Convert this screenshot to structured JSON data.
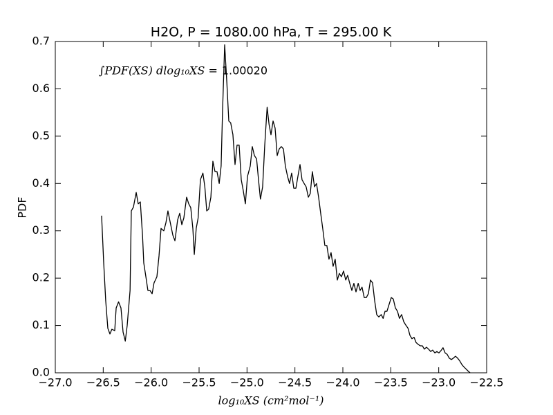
{
  "chart_data": {
    "type": "line",
    "title": "H2O, P = 1080.00 hPa, T = 295.00 K",
    "xlabel": "log₁₀XS (cm²mol⁻¹)",
    "ylabel": "PDF",
    "annotation": {
      "label": "∫PDF(XS) dlog₁₀XS =",
      "value": "1.00020"
    },
    "color": "#000000",
    "grid": false,
    "xlim": [
      -27.0,
      -22.5
    ],
    "ylim": [
      0,
      0.7
    ],
    "xticks": [
      {
        "value": -27.0,
        "label": "−27.0"
      },
      {
        "value": -26.5,
        "label": "−26.5"
      },
      {
        "value": -26.0,
        "label": "−26.0"
      },
      {
        "value": -25.5,
        "label": "−25.5"
      },
      {
        "value": -25.0,
        "label": "−25.0"
      },
      {
        "value": -24.5,
        "label": "−24.5"
      },
      {
        "value": -24.0,
        "label": "−24.0"
      },
      {
        "value": -23.5,
        "label": "−23.5"
      },
      {
        "value": -23.0,
        "label": "−23.0"
      },
      {
        "value": -22.5,
        "label": "−22.5"
      }
    ],
    "yticks": [
      {
        "value": 0,
        "label": "0.0"
      },
      0.1,
      0.2,
      0.3,
      0.4,
      0.5,
      0.6,
      0.7
    ],
    "x": [
      -26.517,
      -26.495,
      -26.474,
      -26.452,
      -26.43,
      -26.41,
      -26.38,
      -26.365,
      -26.34,
      -26.315,
      -26.293,
      -26.27,
      -26.25,
      -26.22,
      -26.207,
      -26.185,
      -26.156,
      -26.135,
      -26.113,
      -26.09,
      -26.077,
      -26.055,
      -26.034,
      -26.012,
      -25.99,
      -25.97,
      -25.94,
      -25.918,
      -25.897,
      -25.868,
      -25.846,
      -25.825,
      -25.796,
      -25.774,
      -25.752,
      -25.724,
      -25.702,
      -25.68,
      -25.659,
      -25.63,
      -25.608,
      -25.587,
      -25.565,
      -25.55,
      -25.53,
      -25.51,
      -25.486,
      -25.46,
      -25.44,
      -25.42,
      -25.4,
      -25.377,
      -25.356,
      -25.334,
      -25.313,
      -25.29,
      -25.27,
      -25.255,
      -25.233,
      -25.21,
      -25.19,
      -25.17,
      -25.147,
      -25.125,
      -25.104,
      -25.082,
      -25.06,
      -25.04,
      -25.017,
      -24.995,
      -24.966,
      -24.945,
      -24.923,
      -24.9,
      -24.88,
      -24.86,
      -24.837,
      -24.815,
      -24.79,
      -24.77,
      -24.75,
      -24.728,
      -24.707,
      -24.685,
      -24.664,
      -24.642,
      -24.62,
      -24.6,
      -24.577,
      -24.556,
      -24.534,
      -24.512,
      -24.49,
      -24.469,
      -24.447,
      -24.426,
      -24.404,
      -24.383,
      -24.36,
      -24.34,
      -24.318,
      -24.296,
      -24.275,
      -24.253,
      -24.23,
      -24.21,
      -24.188,
      -24.167,
      -24.145,
      -24.123,
      -24.102,
      -24.08,
      -24.058,
      -24.037,
      -24.015,
      -23.993,
      -23.97,
      -23.95,
      -23.928,
      -23.906,
      -23.885,
      -23.863,
      -23.84,
      -23.82,
      -23.8,
      -23.777,
      -23.755,
      -23.734,
      -23.712,
      -23.69,
      -23.668,
      -23.647,
      -23.625,
      -23.6,
      -23.58,
      -23.56,
      -23.54,
      -23.517,
      -23.495,
      -23.474,
      -23.452,
      -23.43,
      -23.41,
      -23.387,
      -23.365,
      -23.344,
      -23.32,
      -23.3,
      -23.279,
      -23.257,
      -23.236,
      -23.214,
      -23.192,
      -23.17,
      -23.15,
      -23.127,
      -23.106,
      -23.084,
      -23.063,
      -23.04,
      -23.02,
      -22.998,
      -22.976,
      -22.955,
      -22.933,
      -22.912,
      -22.89,
      -22.868,
      -22.847,
      -22.825,
      -22.803,
      -22.78,
      -22.76,
      -22.74,
      -22.72,
      -22.695,
      -22.673
    ],
    "values": [
      0.332,
      0.232,
      0.152,
      0.094,
      0.082,
      0.092,
      0.089,
      0.137,
      0.15,
      0.137,
      0.086,
      0.067,
      0.1,
      0.174,
      0.342,
      0.35,
      0.381,
      0.357,
      0.361,
      0.29,
      0.232,
      0.203,
      0.174,
      0.174,
      0.167,
      0.19,
      0.203,
      0.247,
      0.305,
      0.3,
      0.317,
      0.342,
      0.313,
      0.291,
      0.279,
      0.323,
      0.337,
      0.313,
      0.327,
      0.371,
      0.357,
      0.349,
      0.305,
      0.25,
      0.305,
      0.327,
      0.408,
      0.422,
      0.393,
      0.342,
      0.346,
      0.371,
      0.447,
      0.425,
      0.425,
      0.4,
      0.437,
      0.554,
      0.693,
      0.612,
      0.532,
      0.528,
      0.503,
      0.44,
      0.481,
      0.481,
      0.408,
      0.386,
      0.357,
      0.415,
      0.437,
      0.478,
      0.459,
      0.452,
      0.408,
      0.367,
      0.393,
      0.481,
      0.561,
      0.525,
      0.503,
      0.532,
      0.517,
      0.459,
      0.473,
      0.478,
      0.473,
      0.437,
      0.415,
      0.4,
      0.422,
      0.39,
      0.39,
      0.415,
      0.44,
      0.408,
      0.4,
      0.393,
      0.371,
      0.379,
      0.425,
      0.393,
      0.4,
      0.371,
      0.335,
      0.305,
      0.269,
      0.269,
      0.24,
      0.254,
      0.225,
      0.24,
      0.196,
      0.21,
      0.203,
      0.215,
      0.196,
      0.206,
      0.189,
      0.174,
      0.189,
      0.171,
      0.189,
      0.174,
      0.181,
      0.159,
      0.159,
      0.167,
      0.196,
      0.19,
      0.152,
      0.123,
      0.118,
      0.123,
      0.115,
      0.13,
      0.13,
      0.145,
      0.159,
      0.156,
      0.137,
      0.13,
      0.115,
      0.123,
      0.108,
      0.101,
      0.094,
      0.079,
      0.072,
      0.075,
      0.064,
      0.06,
      0.057,
      0.057,
      0.05,
      0.054,
      0.05,
      0.045,
      0.048,
      0.042,
      0.045,
      0.042,
      0.047,
      0.053,
      0.042,
      0.039,
      0.031,
      0.028,
      0.031,
      0.035,
      0.031,
      0.025,
      0.018,
      0.013,
      0.009,
      0.004,
      0.0
    ]
  }
}
